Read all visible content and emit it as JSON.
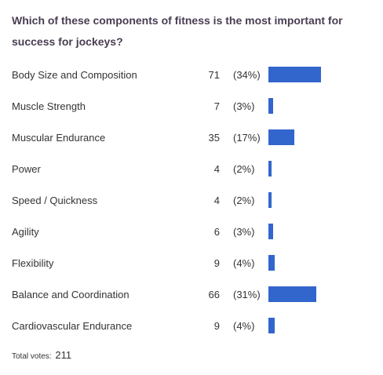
{
  "poll": {
    "question": "Which of these components of fitness is the most important for success for jockeys?",
    "options": [
      {
        "label": "Body Size and Composition",
        "votes": "71",
        "percent": "(34%)",
        "fraction": 0.34
      },
      {
        "label": "Muscle Strength",
        "votes": "7",
        "percent": "(3%)",
        "fraction": 0.03
      },
      {
        "label": "Muscular Endurance",
        "votes": "35",
        "percent": "(17%)",
        "fraction": 0.17
      },
      {
        "label": "Power",
        "votes": "4",
        "percent": "(2%)",
        "fraction": 0.02
      },
      {
        "label": "Speed / Quickness",
        "votes": "4",
        "percent": "(2%)",
        "fraction": 0.02
      },
      {
        "label": "Agility",
        "votes": "6",
        "percent": "(3%)",
        "fraction": 0.03
      },
      {
        "label": "Flexibility",
        "votes": "9",
        "percent": "(4%)",
        "fraction": 0.04
      },
      {
        "label": "Balance and Coordination",
        "votes": "66",
        "percent": "(31%)",
        "fraction": 0.31
      },
      {
        "label": "Cardiovascular Endurance",
        "votes": "9",
        "percent": "(4%)",
        "fraction": 0.04
      }
    ],
    "total_label": "Total votes:",
    "total_votes": "211",
    "bar_color": "#3366cc"
  }
}
